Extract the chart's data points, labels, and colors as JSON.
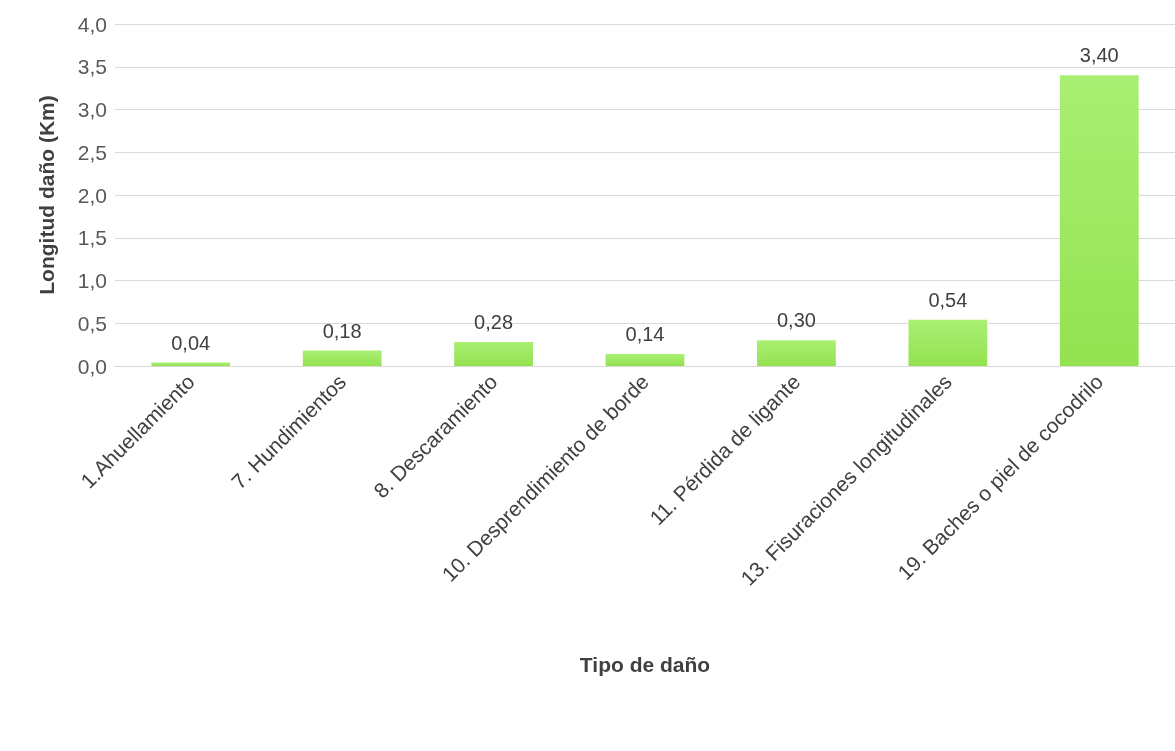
{
  "chart_data": {
    "type": "bar",
    "xlabel": "Tipo de daño",
    "ylabel": "Longitud daño (Km)",
    "categories": [
      "1.Ahuellamiento",
      "7. Hundimientos",
      "8. Descaramiento",
      "10. Desprendimiento de borde",
      "11. Pérdida de ligante",
      "13. Fisuraciones longitudinales",
      "19. Baches o piel de cocodrilo"
    ],
    "values": [
      0.04,
      0.18,
      0.28,
      0.14,
      0.3,
      0.54,
      3.4
    ],
    "value_labels": [
      "0,04",
      "0,18",
      "0,28",
      "0,14",
      "0,30",
      "0,54",
      "3,40"
    ],
    "color": "#93e250",
    "ylim": [
      0,
      4
    ],
    "yticks": [
      {
        "value": 0,
        "label": "0,0"
      },
      {
        "value": 0.5,
        "label": "0,5"
      },
      {
        "value": 1,
        "label": "1,0"
      },
      {
        "value": 1.5,
        "label": "1,5"
      },
      {
        "value": 2,
        "label": "2,0"
      },
      {
        "value": 2.5,
        "label": "2,5"
      },
      {
        "value": 3,
        "label": "3,0"
      },
      {
        "value": 3.5,
        "label": "3,5"
      },
      {
        "value": 4,
        "label": "4,0"
      }
    ],
    "grid": "y"
  }
}
